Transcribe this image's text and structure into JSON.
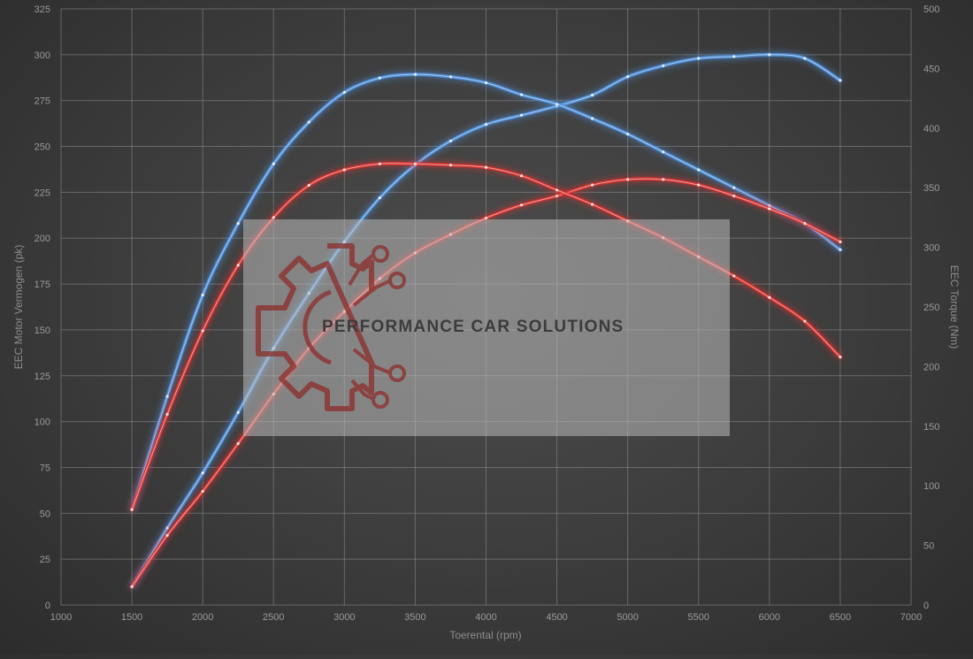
{
  "chart_data": {
    "type": "line",
    "xlabel": "Toerental (rpm)",
    "ylabel_left": "EEC Motor Vermogen (pk)",
    "ylabel_right": "EEC Torque (Nm)",
    "xlim": [
      1000,
      7000
    ],
    "ylim_left": [
      0,
      325
    ],
    "ylim_right": [
      0,
      500
    ],
    "x_ticks": [
      1000,
      1500,
      2000,
      2500,
      3000,
      3500,
      4000,
      4500,
      5000,
      5500,
      6000,
      6500,
      7000
    ],
    "y_ticks_left": [
      0,
      25,
      50,
      75,
      100,
      125,
      150,
      175,
      200,
      225,
      250,
      275,
      300,
      325
    ],
    "y_ticks_right": [
      0,
      50,
      100,
      150,
      200,
      250,
      300,
      350,
      400,
      450,
      500
    ],
    "grid": true,
    "series": [
      {
        "axis": "left",
        "color": "#4d92e0",
        "x": [
          1500,
          1750,
          2000,
          2250,
          2500,
          2750,
          3000,
          3250,
          3500,
          3750,
          4000,
          4250,
          4500,
          4750,
          5000,
          5250,
          5500,
          5750,
          6000,
          6250,
          6500
        ],
        "y": [
          10,
          42,
          72,
          105,
          140,
          170,
          198,
          222,
          240,
          253,
          262,
          267,
          272,
          278,
          288,
          294,
          298,
          299,
          300,
          298,
          286
        ]
      },
      {
        "axis": "right",
        "color": "#4d92e0",
        "x": [
          1500,
          1750,
          2000,
          2250,
          2500,
          2750,
          3000,
          3250,
          3500,
          3750,
          4000,
          4250,
          4500,
          4750,
          5000,
          5250,
          5500,
          5750,
          6000,
          6250,
          6500
        ],
        "y": [
          80,
          175,
          260,
          320,
          370,
          405,
          430,
          442,
          445,
          443,
          438,
          428,
          420,
          408,
          395,
          380,
          365,
          350,
          335,
          320,
          298
        ]
      },
      {
        "axis": "left",
        "color": "#e0302e",
        "x": [
          1500,
          1750,
          2000,
          2250,
          2500,
          2750,
          3000,
          3250,
          3500,
          3750,
          4000,
          4250,
          4500,
          4750,
          5000,
          5250,
          5500,
          5750,
          6000,
          6250,
          6500
        ],
        "y": [
          10,
          38,
          62,
          88,
          115,
          140,
          160,
          178,
          192,
          202,
          211,
          218,
          223,
          229,
          232,
          232,
          229,
          223,
          216,
          208,
          198
        ]
      },
      {
        "axis": "right",
        "color": "#e0302e",
        "x": [
          1500,
          1750,
          2000,
          2250,
          2500,
          2750,
          3000,
          3250,
          3500,
          3750,
          4000,
          4250,
          4500,
          4750,
          5000,
          5250,
          5500,
          5750,
          6000,
          6250,
          6500
        ],
        "y": [
          80,
          160,
          230,
          285,
          325,
          352,
          365,
          370,
          370,
          369,
          367,
          360,
          348,
          336,
          322,
          308,
          292,
          276,
          258,
          238,
          208
        ]
      }
    ]
  },
  "watermark": {
    "text": "PERFORMANCE CAR SOLUTIONS",
    "icon": "gear-circuit-icon",
    "panel_color": "#b9b9b9",
    "icon_color": "#8c2d2a"
  }
}
